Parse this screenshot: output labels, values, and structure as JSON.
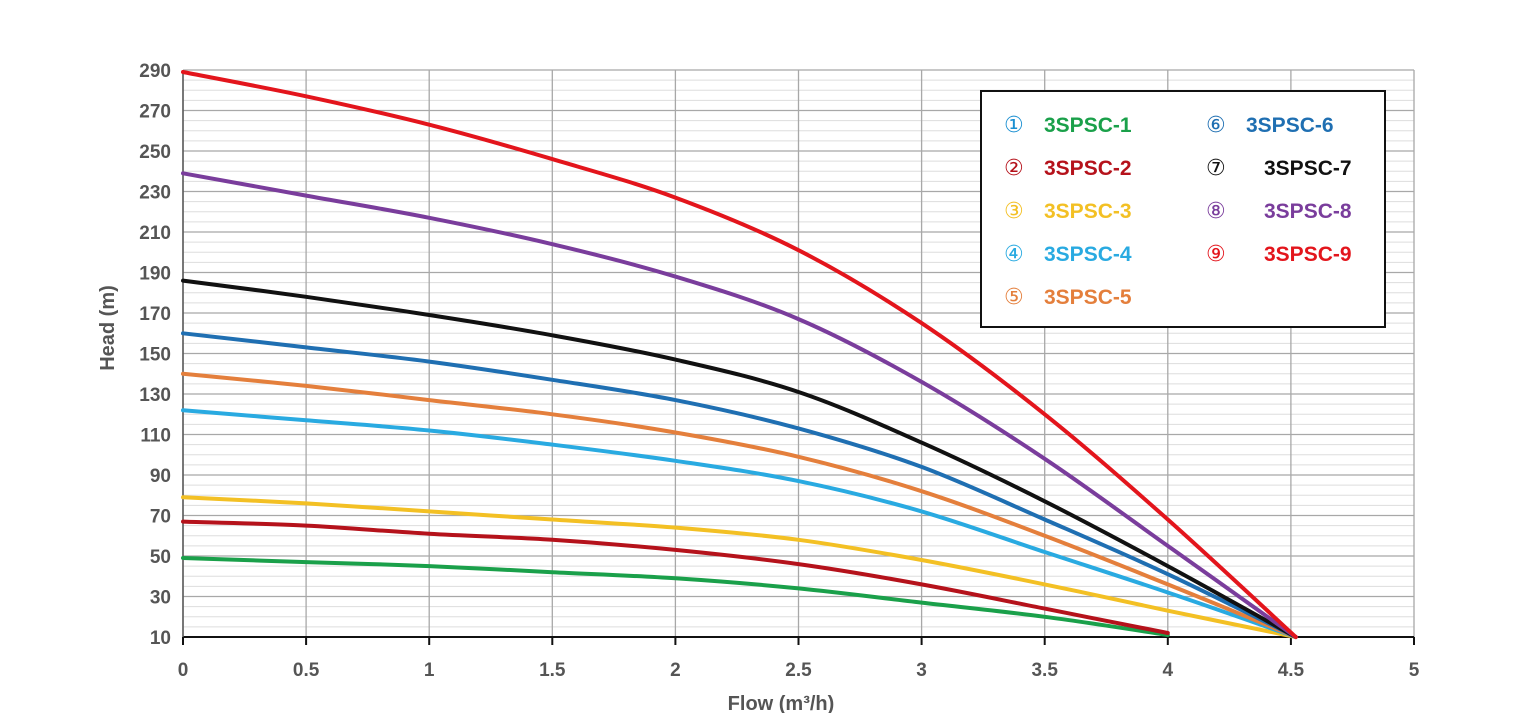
{
  "chart_data": {
    "type": "line",
    "title": "",
    "xlabel": "Flow (m³/h)",
    "ylabel": "Head (m)",
    "xlim": [
      0,
      5
    ],
    "ylim": [
      10,
      290
    ],
    "x_ticks": [
      "0",
      "0.5",
      "1",
      "1.5",
      "2",
      "2.5",
      "3",
      "3.5",
      "4",
      "4.5",
      "5"
    ],
    "y_ticks": [
      "10",
      "30",
      "50",
      "70",
      "90",
      "110",
      "130",
      "150",
      "170",
      "190",
      "210",
      "230",
      "250",
      "270",
      "290"
    ],
    "grid": true,
    "legend_position": "top-right",
    "series": [
      {
        "marker": "①",
        "name": "3SPSC-1",
        "color": "#1aa04a",
        "x": [
          0,
          0.5,
          1,
          1.5,
          2,
          2.5,
          3,
          3.5,
          4
        ],
        "y": [
          49,
          47,
          45,
          42,
          39,
          34,
          27,
          20,
          11
        ]
      },
      {
        "marker": "②",
        "name": "3SPSC-2",
        "color": "#b5121b",
        "x": [
          0,
          0.5,
          1,
          1.5,
          2,
          2.5,
          3,
          3.5,
          4
        ],
        "y": [
          67,
          65,
          61,
          58,
          53,
          46,
          36,
          24,
          12
        ]
      },
      {
        "marker": "③",
        "name": "3SPSC-3",
        "color": "#f3c024",
        "x": [
          0,
          0.5,
          1,
          1.5,
          2,
          2.5,
          3,
          3.5,
          4,
          4.5
        ],
        "y": [
          79,
          76,
          72,
          68,
          64,
          58,
          48,
          36,
          23,
          10
        ]
      },
      {
        "marker": "④",
        "name": "3SPSC-4",
        "color": "#29aae1",
        "x": [
          0,
          0.5,
          1,
          1.5,
          2,
          2.5,
          3,
          3.5,
          4,
          4.5
        ],
        "y": [
          122,
          117,
          112,
          105,
          97,
          87,
          72,
          52,
          32,
          10
        ]
      },
      {
        "marker": "⑤",
        "name": "3SPSC-5",
        "color": "#e47f3c",
        "x": [
          0,
          0.5,
          1,
          1.5,
          2,
          2.5,
          3,
          3.5,
          4,
          4.5
        ],
        "y": [
          140,
          134,
          127,
          120,
          111,
          99,
          82,
          60,
          36,
          10
        ]
      },
      {
        "marker": "⑥",
        "name": "3SPSC-6",
        "color": "#1f6fb2",
        "x": [
          0,
          0.5,
          1,
          1.5,
          2,
          2.5,
          3,
          3.5,
          4,
          4.5
        ],
        "y": [
          160,
          153,
          146,
          137,
          127,
          113,
          94,
          68,
          41,
          10
        ]
      },
      {
        "marker": "⑦",
        "name": "3SPSC-7",
        "color": "#111111",
        "x": [
          0,
          0.5,
          1,
          1.5,
          2,
          2.5,
          3,
          3.5,
          4,
          4.5
        ],
        "y": [
          186,
          178,
          169,
          159,
          147,
          131,
          106,
          77,
          45,
          10
        ]
      },
      {
        "marker": "⑧",
        "name": "3SPSC-8",
        "color": "#7a3d9c",
        "x": [
          0,
          0.5,
          1,
          1.5,
          2,
          2.5,
          3,
          3.5,
          4,
          4.5
        ],
        "y": [
          239,
          228,
          217,
          204,
          188,
          167,
          136,
          98,
          55,
          10
        ]
      },
      {
        "marker": "⑨",
        "name": "3SPSC-9",
        "color": "#e3151c",
        "x": [
          0,
          0.5,
          1,
          1.5,
          2,
          2.5,
          3,
          3.5,
          4,
          4.5
        ],
        "y": [
          289,
          277,
          263,
          246,
          227,
          201,
          165,
          120,
          68,
          10
        ]
      }
    ]
  }
}
